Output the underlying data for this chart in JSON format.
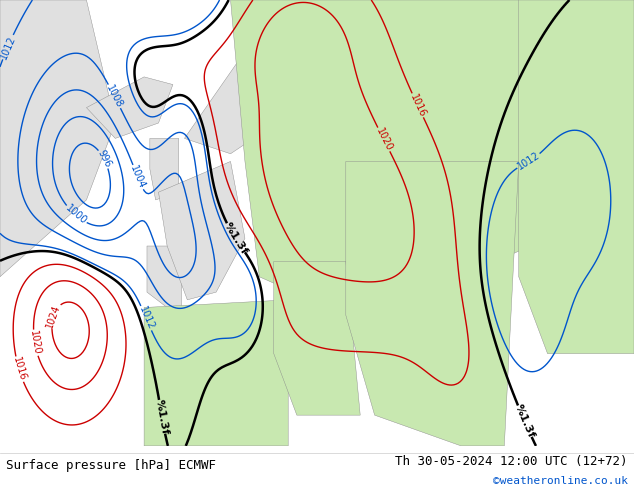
{
  "title_left": "Surface pressure [hPa] ECMWF",
  "title_right": "Th 30-05-2024 12:00 UTC (12+72)",
  "credit": "©weatheronline.co.uk",
  "bg_ocean": "#c8d8e8",
  "land_west_color": "#e0e0e0",
  "land_east_color": "#c8e8b0",
  "contour_black_color": "#000000",
  "contour_red_color": "#cc0000",
  "contour_blue_color": "#0055cc",
  "label_fontsize": 7,
  "footer_fontsize": 9,
  "credit_fontsize": 8,
  "credit_color": "#0055cc"
}
